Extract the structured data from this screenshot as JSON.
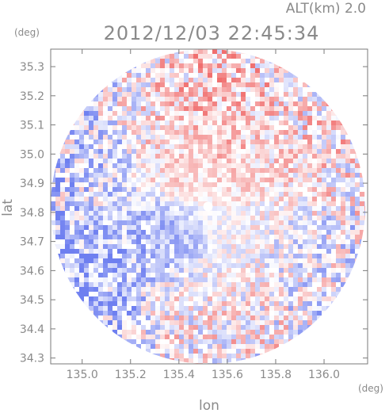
{
  "header": {
    "altitude_label": "ALT(km) 2.0",
    "timestamp": "2012/12/03 22:45:34"
  },
  "colors": {
    "negative": "#6e7ff0",
    "zero": "#ffffff",
    "positive": "#f06e6e",
    "axis": "#7a7a7a",
    "text": "#8a8a8a"
  },
  "chart_data": {
    "type": "heatmap",
    "title": "2012/12/03 22:45:34",
    "subtitle": "ALT(km) 2.0",
    "xlabel": "lon",
    "ylabel": "lat",
    "xunit": "(deg)",
    "yunit": "(deg)",
    "xlim": [
      134.87,
      136.18
    ],
    "ylim": [
      34.28,
      35.36
    ],
    "xticks": [
      135.0,
      135.2,
      135.4,
      135.6,
      135.8,
      136.0
    ],
    "xtick_labels": [
      "135.0",
      "135.2",
      "135.4",
      "135.6",
      "135.8",
      "136.0"
    ],
    "yticks": [
      34.3,
      34.4,
      34.5,
      34.6,
      34.7,
      34.8,
      34.9,
      35.0,
      35.1,
      35.2,
      35.3
    ],
    "ytick_labels": [
      "34.3",
      "34.4",
      "34.5",
      "34.6",
      "34.7",
      "34.8",
      "34.9",
      "35.0",
      "35.1",
      "35.2",
      "35.3"
    ],
    "radar_center": {
      "lon": 135.52,
      "lat": 34.82
    },
    "radar_radius_deg_lat": 0.54,
    "grid": false,
    "regions": [
      {
        "lon": 135.53,
        "lat": 35.08,
        "value": 0.45
      },
      {
        "lon": 135.4,
        "lat": 34.98,
        "value": 0.25
      },
      {
        "lon": 135.05,
        "lat": 34.92,
        "value": -0.35
      },
      {
        "lon": 134.99,
        "lat": 34.58,
        "value": -0.75
      },
      {
        "lon": 135.1,
        "lat": 34.45,
        "value": -0.55
      },
      {
        "lon": 135.33,
        "lat": 34.7,
        "value": -0.55
      },
      {
        "lon": 135.4,
        "lat": 34.43,
        "value": 0.05
      },
      {
        "lon": 135.62,
        "lat": 34.5,
        "value": 0.08
      },
      {
        "lon": 135.95,
        "lat": 34.62,
        "value": -0.15
      },
      {
        "lon": 135.9,
        "lat": 35.0,
        "value": 0.2
      }
    ]
  }
}
